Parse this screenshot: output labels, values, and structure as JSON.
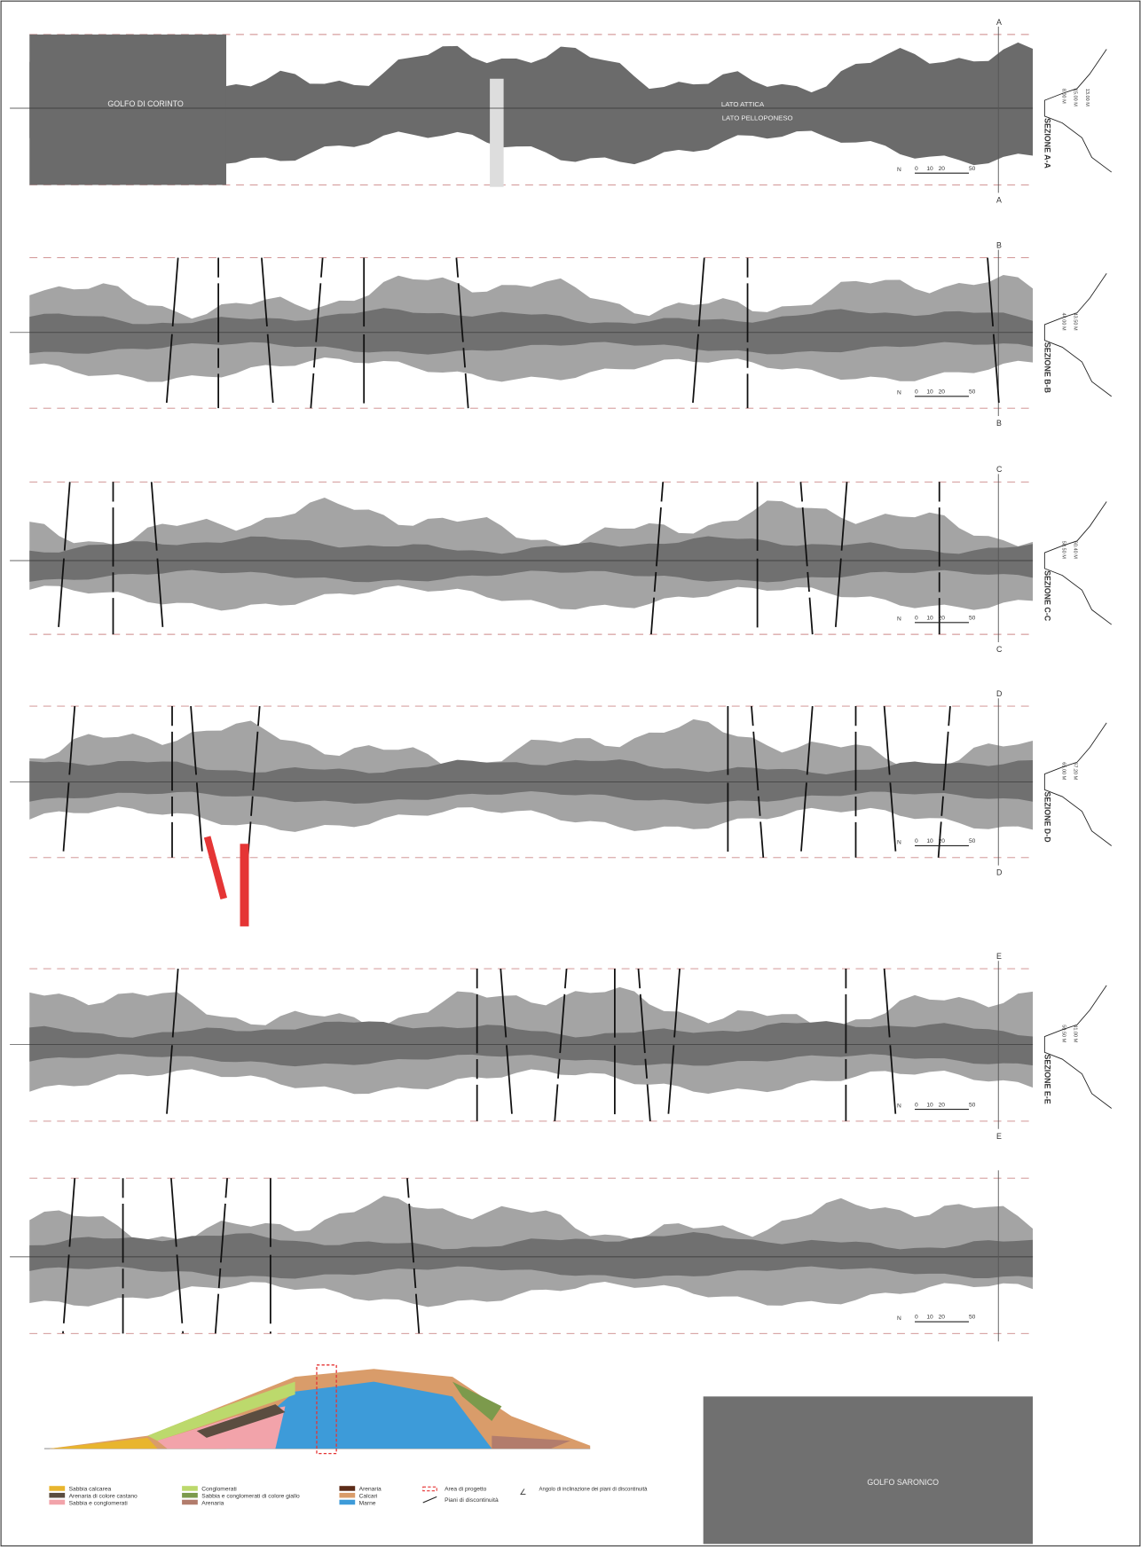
{
  "sections": [
    {
      "label": "SEZIONE A-A",
      "letter": "A",
      "dims": [
        "8.00 M",
        "15.00 M",
        "13.00 M"
      ]
    },
    {
      "label": "SEZIONE B-B",
      "letter": "B",
      "dims": [
        "44.00 M",
        "43.50 M"
      ]
    },
    {
      "label": "SEZIONE C-C",
      "letter": "C",
      "dims": [
        "58.50 M",
        "60.40 M"
      ]
    },
    {
      "label": "SEZIONE D-D",
      "letter": "D",
      "dims": [
        "65.00 M",
        "67.20 M"
      ]
    },
    {
      "label": "SEZIONE E-E",
      "letter": "E",
      "dims": [
        "50.50 M",
        "41.00 M"
      ]
    }
  ],
  "places": {
    "corinto": "GOLFO DI CORINTO",
    "attica": "LATO ATTICA",
    "peloponeso": "LATO PELLOPONESO",
    "saronico": "GOLFO SARONICO"
  },
  "scale_labels": [
    "0",
    "10",
    "20",
    "50"
  ],
  "legend": [
    {
      "label": "Sabbia calcarea",
      "color": "#e8b52e"
    },
    {
      "label": "Arenaria di colore castano",
      "color": "#5b4d40"
    },
    {
      "label": "Sabbia e conglomerati",
      "color": "#f2a3aa"
    },
    {
      "label": "Conglomerati",
      "color": "#bcd96c"
    },
    {
      "label": "Sabbia e conglomerati di colore giallo",
      "color": "#7c9a4c"
    },
    {
      "label": "Arenaria",
      "color": "#b27c6c"
    },
    {
      "label": "Arenaria",
      "color": "#5c2c18"
    },
    {
      "label": "Calcari",
      "color": "#d99c6a"
    },
    {
      "label": "Marne",
      "color": "#3d9bd9"
    }
  ],
  "symbols": {
    "area": "Area di progetto",
    "piani": "Piani di discontinuità",
    "angolo": "Angolo di inclinazione dei piani di discontinuità"
  }
}
